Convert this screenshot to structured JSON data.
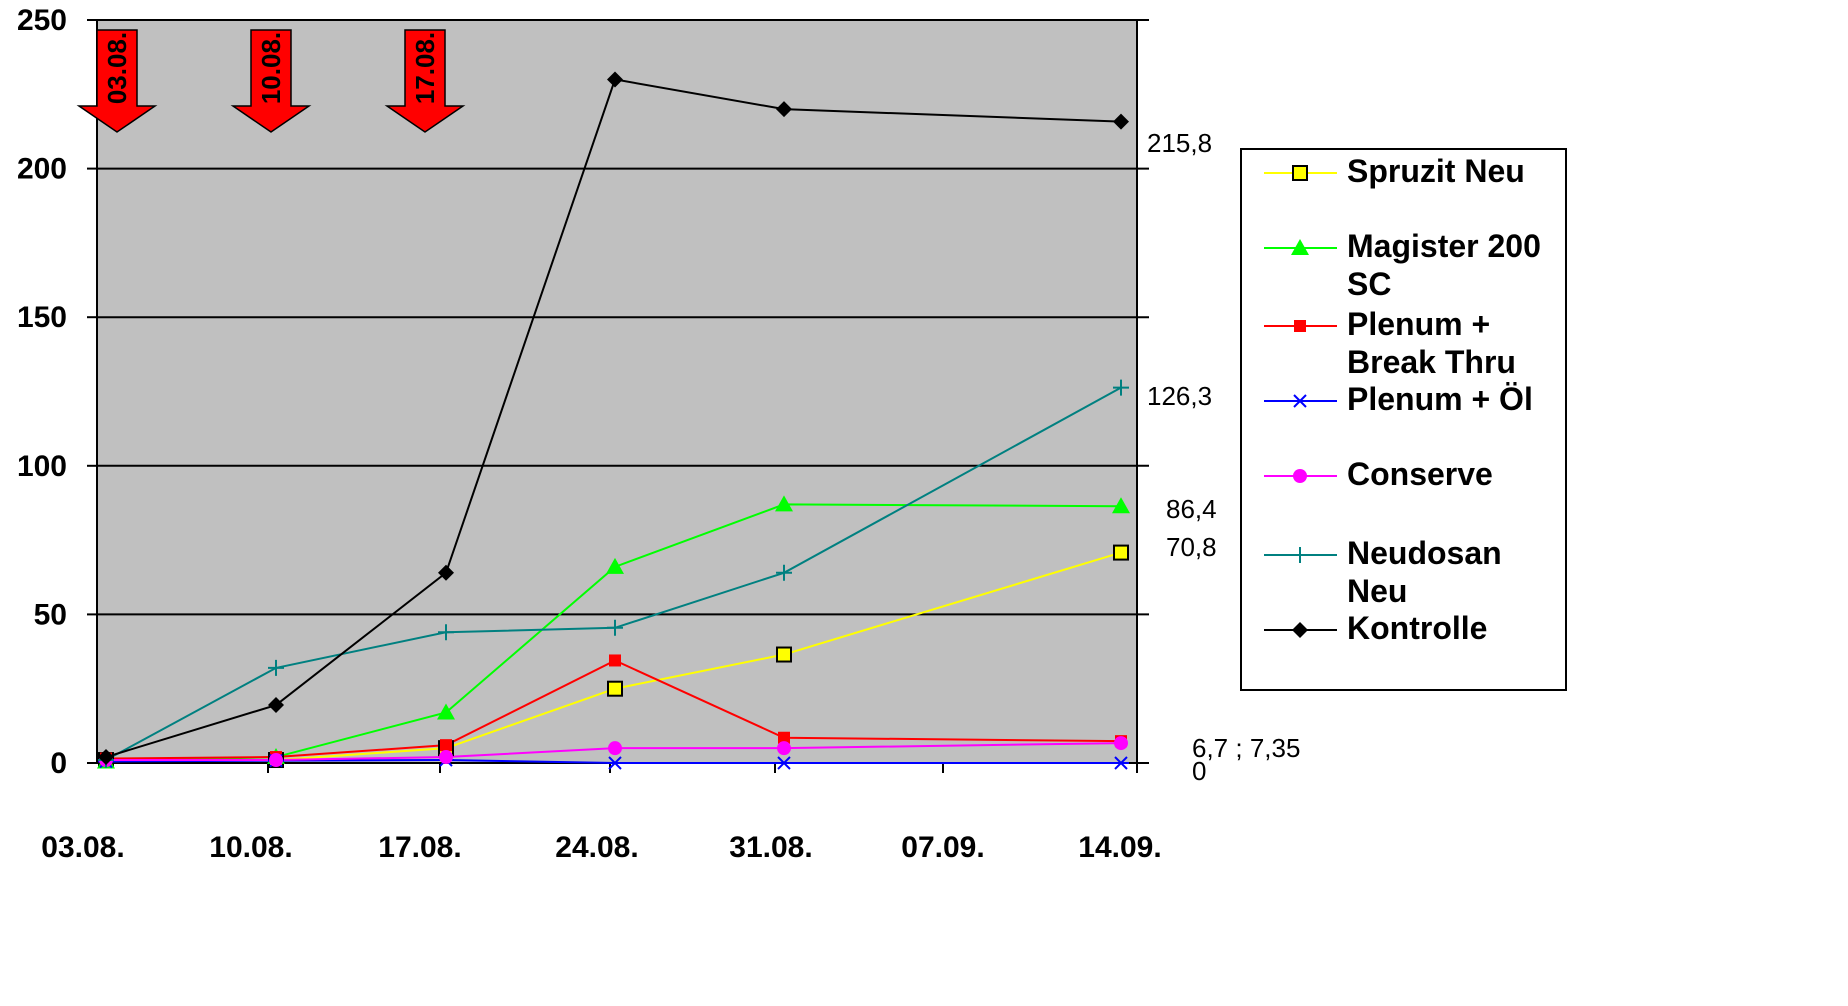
{
  "chart_data": {
    "type": "line",
    "x": [
      "03.08.",
      "10.08.",
      "17.08.",
      "24.08.",
      "31.08.",
      "07.09.",
      "14.09."
    ],
    "ylim": [
      0,
      250
    ],
    "yticks": [
      0,
      50,
      100,
      150,
      200,
      250
    ],
    "grid": "horizontal",
    "legend_position": "right",
    "markers": [
      {
        "label": "03.08.",
        "x": "03.08.",
        "color": "#ff0000"
      },
      {
        "label": "10.08.",
        "x": "10.08.",
        "color": "#ff0000"
      },
      {
        "label": "17.08.",
        "x": "17.08.",
        "color": "#ff0000"
      }
    ],
    "series": [
      {
        "name": "Spruzit Neu",
        "color": "#ffff00",
        "marker": "square",
        "points": [
          [
            "03.08.",
            1
          ],
          [
            "10.08.",
            1
          ],
          [
            "17.08.",
            5
          ],
          [
            "24.08.",
            25
          ],
          [
            "31.08.",
            36.5
          ],
          [
            "14.09.",
            70.8
          ]
        ]
      },
      {
        "name": "Magister 200 SC",
        "color": "#00ff00",
        "marker": "triangle",
        "points": [
          [
            "03.08.",
            0.5
          ],
          [
            "10.08.",
            2
          ],
          [
            "17.08.",
            17
          ],
          [
            "24.08.",
            66
          ],
          [
            "31.08.",
            87
          ],
          [
            "14.09.",
            86.4
          ]
        ]
      },
      {
        "name": "Plenum + Break Thru",
        "color": "#ff0000",
        "marker": "smallsquare",
        "points": [
          [
            "03.08.",
            1.5
          ],
          [
            "10.08.",
            2
          ],
          [
            "17.08.",
            6
          ],
          [
            "24.08.",
            34.5
          ],
          [
            "31.08.",
            8.5
          ],
          [
            "14.09.",
            7.35
          ]
        ]
      },
      {
        "name": "Plenum + Öl",
        "color": "#0000ff",
        "marker": "asterisk",
        "points": [
          [
            "03.08.",
            0.5
          ],
          [
            "10.08.",
            0.8
          ],
          [
            "17.08.",
            1
          ],
          [
            "24.08.",
            0
          ],
          [
            "31.08.",
            0
          ],
          [
            "14.09.",
            0
          ]
        ]
      },
      {
        "name": "Conserve",
        "color": "#ff00ff",
        "marker": "circle",
        "points": [
          [
            "03.08.",
            1
          ],
          [
            "10.08.",
            1
          ],
          [
            "17.08.",
            2
          ],
          [
            "24.08.",
            5
          ],
          [
            "31.08.",
            5
          ],
          [
            "14.09.",
            6.7
          ]
        ]
      },
      {
        "name": "Neudosan Neu",
        "color": "#008080",
        "marker": "plus",
        "points": [
          [
            "03.08.",
            1
          ],
          [
            "10.08.",
            32
          ],
          [
            "17.08.",
            44
          ],
          [
            "24.08.",
            45.5
          ],
          [
            "31.08.",
            64
          ],
          [
            "14.09.",
            126.3
          ]
        ]
      },
      {
        "name": "Kontrolle",
        "color": "#000000",
        "marker": "diamond",
        "points": [
          [
            "03.08.",
            2
          ],
          [
            "10.08.",
            19.5
          ],
          [
            "17.08.",
            64
          ],
          [
            "24.08.",
            230
          ],
          [
            "31.08.",
            220
          ],
          [
            "14.09.",
            215.8
          ]
        ]
      }
    ],
    "annotations": [
      {
        "text": "215,8",
        "y": 215.8
      },
      {
        "text": "126,3",
        "y": 126.3
      },
      {
        "text": "86,4",
        "y": 86.4
      },
      {
        "text": "70,8",
        "y": 70.8
      },
      {
        "text": "6,7 ; 7,35",
        "y": 6.7
      },
      {
        "text": "0",
        "y": 0
      }
    ],
    "legend": [
      "Spruzit Neu",
      "Magister 200 SC",
      "Plenum + Break Thru",
      "Plenum + Öl",
      "Conserve",
      "Neudosan Neu",
      "Kontrolle"
    ]
  }
}
